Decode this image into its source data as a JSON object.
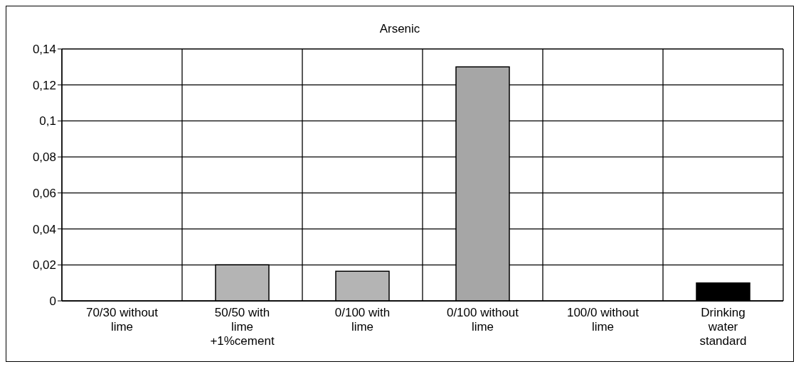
{
  "chart_data": {
    "type": "bar",
    "title": "Arsenic",
    "categories": [
      "70/30 without lime",
      "50/50 with lime +1%cement",
      "0/100 with lime",
      "0/100 without lime",
      "100/0 without lime",
      "Drinking water standard"
    ],
    "values": [
      0,
      0.02,
      0.0165,
      0.13,
      0,
      0.01
    ],
    "colors": [
      "#b4b4b4",
      "#b4b4b4",
      "#b4b4b4",
      "#a6a6a6",
      "#b4b4b4",
      "#000000"
    ],
    "ylim": [
      0,
      0.14
    ],
    "yticks": [
      {
        "value": 0,
        "label": "0"
      },
      {
        "value": 0.02,
        "label": "0,02"
      },
      {
        "value": 0.04,
        "label": "0,04"
      },
      {
        "value": 0.06,
        "label": "0,06"
      },
      {
        "value": 0.08,
        "label": "0,08"
      },
      {
        "value": 0.1,
        "label": "0,1"
      },
      {
        "value": 0.12,
        "label": "0,12"
      },
      {
        "value": 0.14,
        "label": "0,14"
      }
    ],
    "grid": true,
    "legend": false
  }
}
